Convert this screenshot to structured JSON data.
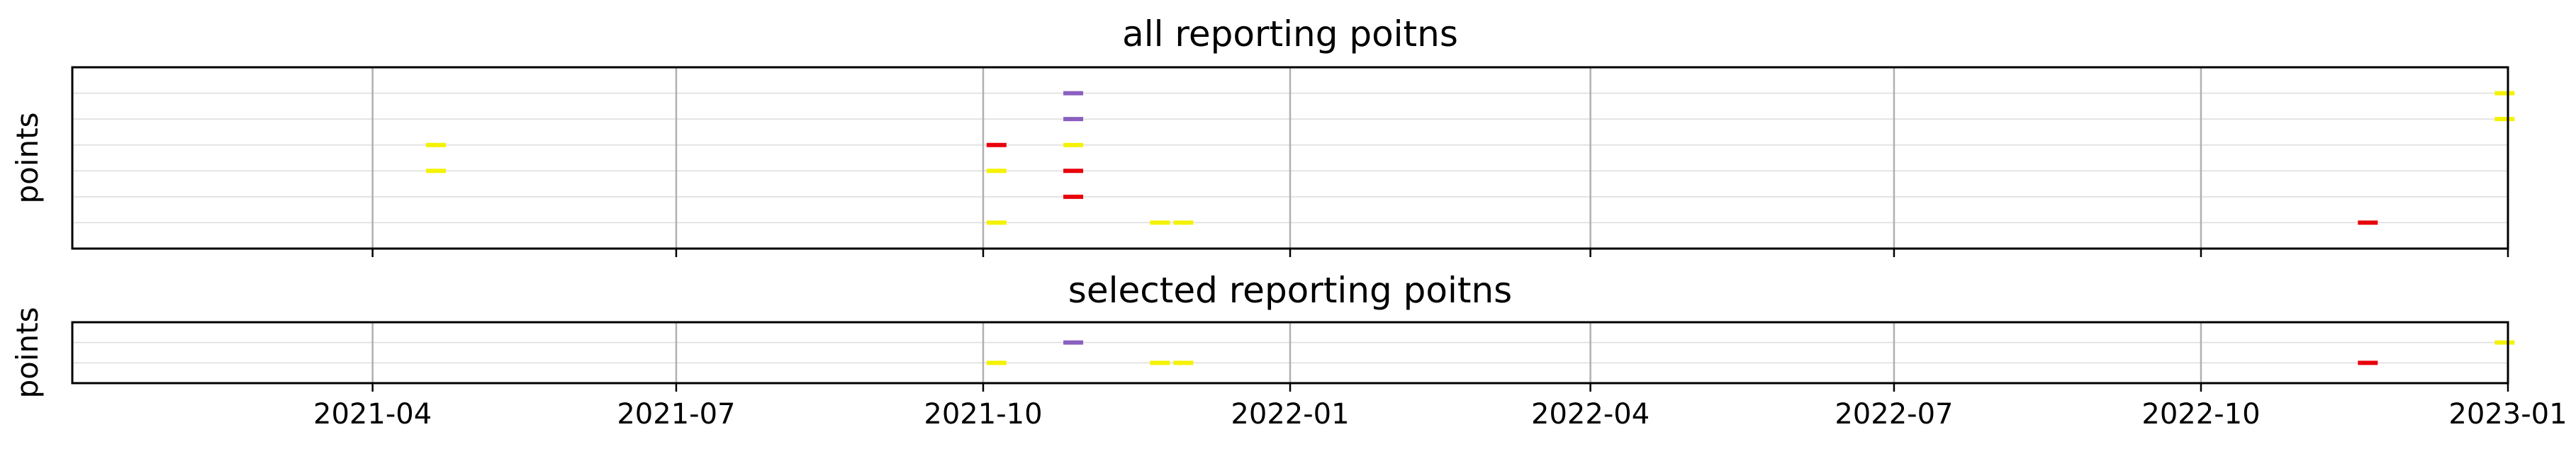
{
  "chart_data": [
    {
      "type": "scatter",
      "marker": "horizontal-dash",
      "title": "all reporting poitns",
      "ylabel": "points",
      "xlabel": "",
      "xlim": [
        "2021-01-01",
        "2023-01-01"
      ],
      "x_ticks": [
        "2021-04",
        "2021-07",
        "2021-10",
        "2022-01",
        "2022-04",
        "2022-07",
        "2022-10",
        "2023-01"
      ],
      "x_tick_labels_visible": false,
      "grid": "vertical major at ticks, faint horizontal per row",
      "rows": 6,
      "colors": {
        "red": "#e8000b",
        "yellow": "#f5f200",
        "purple": "#8b5fbf"
      },
      "points": [
        {
          "date": "2021-04-20",
          "row": 3,
          "color": "yellow"
        },
        {
          "date": "2021-04-20",
          "row": 4,
          "color": "yellow"
        },
        {
          "date": "2021-10-05",
          "row": 1,
          "color": "yellow"
        },
        {
          "date": "2021-10-05",
          "row": 3,
          "color": "yellow"
        },
        {
          "date": "2021-10-05",
          "row": 4,
          "color": "red"
        },
        {
          "date": "2021-10-28",
          "row": 2,
          "color": "red"
        },
        {
          "date": "2021-10-28",
          "row": 3,
          "color": "red"
        },
        {
          "date": "2021-10-28",
          "row": 4,
          "color": "yellow"
        },
        {
          "date": "2021-10-28",
          "row": 5,
          "color": "purple"
        },
        {
          "date": "2021-10-28",
          "row": 6,
          "color": "purple"
        },
        {
          "date": "2021-11-23",
          "row": 1,
          "color": "yellow"
        },
        {
          "date": "2021-11-30",
          "row": 1,
          "color": "yellow"
        },
        {
          "date": "2022-11-20",
          "row": 1,
          "color": "red"
        },
        {
          "date": "2022-12-31",
          "row": 5,
          "color": "yellow"
        },
        {
          "date": "2022-12-31",
          "row": 6,
          "color": "yellow"
        }
      ]
    },
    {
      "type": "scatter",
      "marker": "horizontal-dash",
      "title": "selected reporting poitns",
      "ylabel": "points",
      "xlabel": "",
      "xlim": [
        "2021-01-01",
        "2023-01-01"
      ],
      "x_ticks": [
        "2021-04",
        "2021-07",
        "2021-10",
        "2022-01",
        "2022-04",
        "2022-07",
        "2022-10",
        "2023-01"
      ],
      "x_tick_labels_visible": true,
      "grid": "vertical major at ticks, faint horizontal per row",
      "rows": 2,
      "colors": {
        "red": "#e8000b",
        "yellow": "#f5f200",
        "purple": "#8b5fbf"
      },
      "points": [
        {
          "date": "2021-10-05",
          "row": 1,
          "color": "yellow"
        },
        {
          "date": "2021-10-28",
          "row": 2,
          "color": "purple"
        },
        {
          "date": "2021-11-23",
          "row": 1,
          "color": "yellow"
        },
        {
          "date": "2021-11-30",
          "row": 1,
          "color": "yellow"
        },
        {
          "date": "2022-11-20",
          "row": 1,
          "color": "red"
        },
        {
          "date": "2022-12-31",
          "row": 2,
          "color": "yellow"
        }
      ]
    }
  ]
}
